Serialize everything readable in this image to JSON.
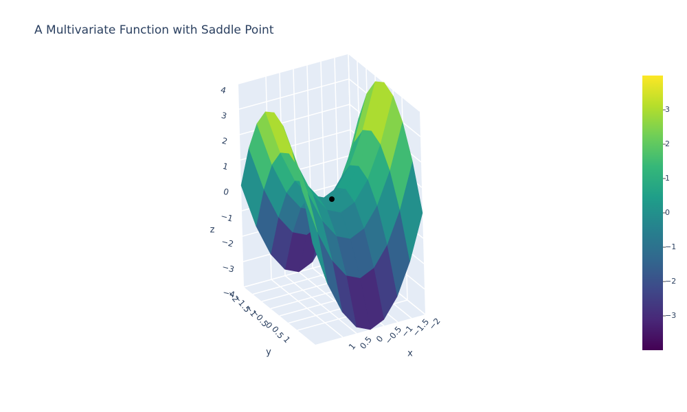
{
  "chart_data": {
    "type": "surface",
    "title": "A Multivariate Function with Saddle Point",
    "x_title": "x",
    "y_title": "y",
    "z_title": "z",
    "x": [
      -2,
      -1.5,
      -1,
      -0.5,
      0,
      0.5,
      1,
      1.5,
      2
    ],
    "y": [
      -2,
      -1.5,
      -1,
      -0.5,
      0,
      0.5,
      1,
      1.5,
      2
    ],
    "z": [
      [
        0,
        -1.75,
        -3,
        -3.75,
        -4,
        -3.75,
        -3,
        -1.75,
        0
      ],
      [
        1.75,
        0,
        -1.25,
        -2,
        -2.25,
        -2,
        -1.25,
        0,
        1.75
      ],
      [
        3,
        1.25,
        0,
        -0.75,
        -1,
        -0.75,
        0,
        1.25,
        3
      ],
      [
        3.75,
        2,
        0.75,
        0,
        -0.25,
        0,
        0.75,
        2,
        3.75
      ],
      [
        4,
        2.25,
        1,
        0.25,
        0,
        0.25,
        1,
        2.25,
        4
      ],
      [
        3.75,
        2,
        0.75,
        0,
        -0.25,
        0,
        0.75,
        2,
        3.75
      ],
      [
        3,
        1.25,
        0,
        -0.75,
        -1,
        -0.75,
        0,
        1.25,
        3
      ],
      [
        1.75,
        0,
        -1.25,
        -2,
        -2.25,
        -2,
        -1.25,
        0,
        1.75
      ],
      [
        0,
        -1.75,
        -3,
        -3.75,
        -4,
        -3.75,
        -3,
        -1.75,
        0
      ]
    ],
    "saddle_point": {
      "x": 0,
      "y": 0,
      "z": 0,
      "color": "#000000"
    },
    "xlim": [
      -2,
      2
    ],
    "ylim": [
      -2,
      2
    ],
    "zlim": [
      -4,
      4
    ],
    "xticks": [
      {
        "value": -2,
        "label": "−2"
      },
      {
        "value": -1.5,
        "label": "−1.5"
      },
      {
        "value": -1,
        "label": "−1"
      },
      {
        "value": -0.5,
        "label": "−0.5"
      },
      0,
      0.5,
      1
    ],
    "yticks": [
      {
        "value": -2,
        "label": "−2"
      },
      {
        "value": -1.5,
        "label": "−1.5"
      },
      {
        "value": -1,
        "label": "−1"
      },
      {
        "value": -0.5,
        "label": "−0.5"
      },
      0,
      0.5,
      1
    ],
    "zticks": [
      {
        "value": -4,
        "label": "−4"
      },
      {
        "value": -3,
        "label": "−3"
      },
      {
        "value": -2,
        "label": "−2"
      },
      {
        "value": -1,
        "label": "−1"
      },
      0,
      1,
      2,
      3,
      4
    ],
    "clim": [
      -4,
      4
    ],
    "colorbar_ticks": [
      {
        "value": -3,
        "label": "−3"
      },
      {
        "value": -2,
        "label": "−2"
      },
      {
        "value": -1,
        "label": "−1"
      },
      0,
      1,
      2,
      3
    ],
    "colorscale": [
      "#440154",
      "#482878",
      "#3e4989",
      "#31688e",
      "#26828e",
      "#1f9e89",
      "#35b779",
      "#6ece58",
      "#b5de2b",
      "#fde725"
    ]
  }
}
